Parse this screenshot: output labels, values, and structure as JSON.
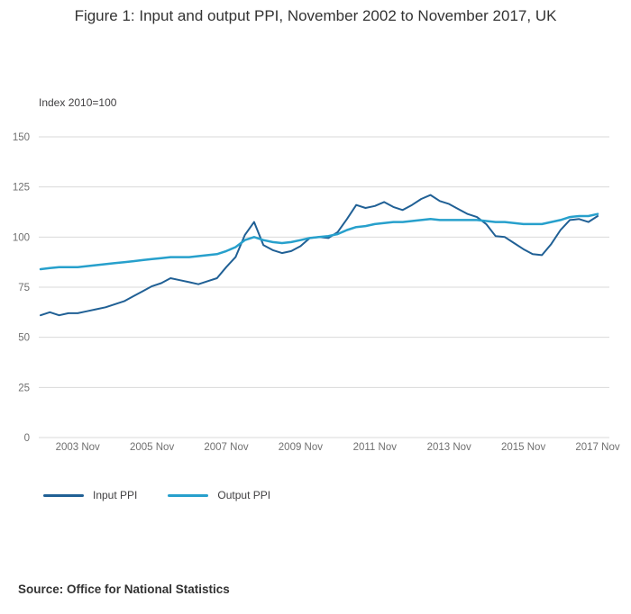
{
  "figure": {
    "title": "Figure 1: Input and output PPI, November 2002 to November 2017, UK",
    "source": "Source: Office for National Statistics"
  },
  "legend": {
    "items": [
      {
        "label": "Input PPI",
        "color": "#206095"
      },
      {
        "label": "Output PPI",
        "color": "#27a0cc"
      }
    ]
  },
  "chart_data": {
    "type": "line",
    "title": "Figure 1: Input and output PPI, November 2002 to November 2017, UK",
    "index_label": "Index 2010=100",
    "xlabel": "",
    "ylabel": "Index 2010=100",
    "ylim": [
      0,
      150
    ],
    "y_ticks": [
      0,
      25,
      50,
      75,
      100,
      125,
      150
    ],
    "grid": "horizontal",
    "legend_position": "bottom-left",
    "x_ticks": [
      {
        "label": "2003 Nov",
        "i": 4
      },
      {
        "label": "2005 Nov",
        "i": 12
      },
      {
        "label": "2007 Nov",
        "i": 20
      },
      {
        "label": "2009 Nov",
        "i": 28
      },
      {
        "label": "2011 Nov",
        "i": 36
      },
      {
        "label": "2013 Nov",
        "i": 44
      },
      {
        "label": "2015 Nov",
        "i": 52
      },
      {
        "label": "2017 Nov",
        "i": 60
      }
    ],
    "x": [
      "2002-11",
      "2003-02",
      "2003-05",
      "2003-08",
      "2003-11",
      "2004-02",
      "2004-05",
      "2004-08",
      "2004-11",
      "2005-02",
      "2005-05",
      "2005-08",
      "2005-11",
      "2006-02",
      "2006-05",
      "2006-08",
      "2006-11",
      "2007-02",
      "2007-05",
      "2007-08",
      "2007-11",
      "2008-02",
      "2008-05",
      "2008-08",
      "2008-11",
      "2009-02",
      "2009-05",
      "2009-08",
      "2009-11",
      "2010-02",
      "2010-05",
      "2010-08",
      "2010-11",
      "2011-02",
      "2011-05",
      "2011-08",
      "2011-11",
      "2012-02",
      "2012-05",
      "2012-08",
      "2012-11",
      "2013-02",
      "2013-05",
      "2013-08",
      "2013-11",
      "2014-02",
      "2014-05",
      "2014-08",
      "2014-11",
      "2015-02",
      "2015-05",
      "2015-08",
      "2015-11",
      "2016-02",
      "2016-05",
      "2016-08",
      "2016-11",
      "2017-02",
      "2017-05",
      "2017-08",
      "2017-11"
    ],
    "series": [
      {
        "name": "Input PPI",
        "color": "#206095",
        "values": [
          61,
          62.5,
          61,
          62,
          62,
          63,
          64,
          65,
          66.5,
          68,
          70.5,
          73,
          75.5,
          77,
          79.5,
          78.5,
          77.5,
          76.5,
          78,
          79.5,
          85,
          90,
          101,
          107.5,
          96,
          93.5,
          92,
          93,
          95.5,
          99.5,
          100,
          99.5,
          102.5,
          109,
          116,
          114.5,
          115.5,
          117.5,
          115,
          113.5,
          116,
          119,
          121,
          118,
          116.5,
          114,
          111.5,
          110,
          106.5,
          100.5,
          100,
          97,
          94,
          91.5,
          91,
          96.5,
          103.5,
          108.5,
          109,
          107.5,
          110.5
        ]
      },
      {
        "name": "Output PPI",
        "color": "#27a0cc",
        "values": [
          84,
          84.5,
          85,
          85,
          85,
          85.5,
          86,
          86.5,
          87,
          87.5,
          88,
          88.5,
          89,
          89.5,
          90,
          90,
          90,
          90.5,
          91,
          91.5,
          93,
          95,
          98.5,
          100,
          98.5,
          97.5,
          97,
          97.5,
          98.5,
          99.5,
          100,
          100.5,
          101.5,
          103.5,
          105,
          105.5,
          106.5,
          107,
          107.5,
          107.5,
          108,
          108.5,
          109,
          108.5,
          108.5,
          108.5,
          108.5,
          108.5,
          108,
          107.5,
          107.5,
          107,
          106.5,
          106.5,
          106.5,
          107.5,
          108.5,
          110,
          110.5,
          110.5,
          111.5
        ]
      }
    ]
  }
}
